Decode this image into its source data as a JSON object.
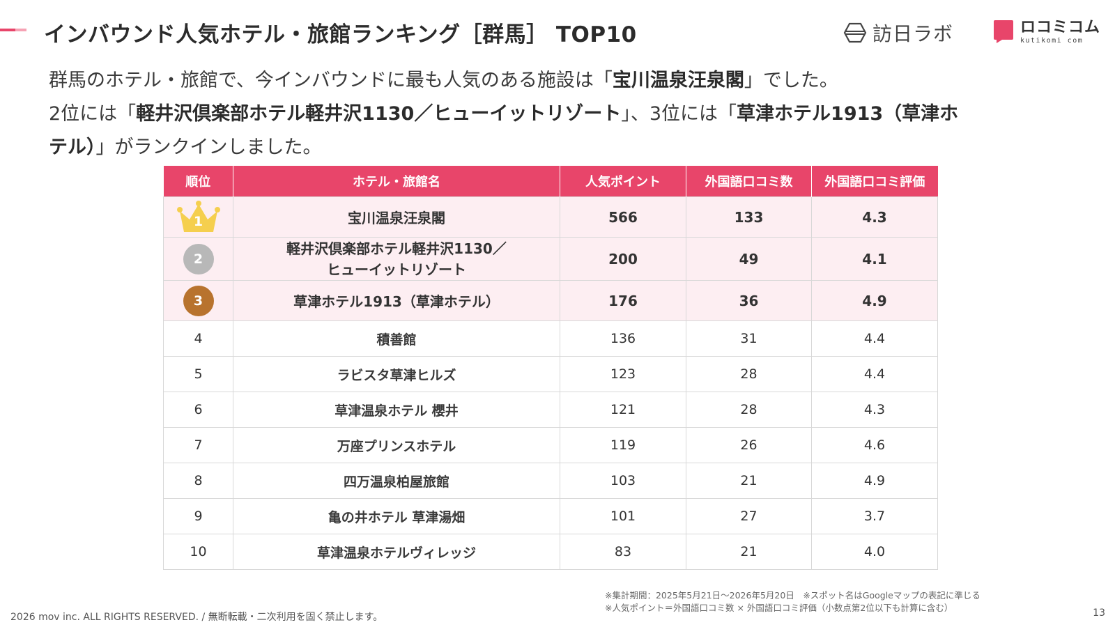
{
  "colors": {
    "accent": "#e8456a",
    "accent_light": "#f6a2b4",
    "header_bg": "#e8456a",
    "top_row_bg": "#fdeef2",
    "gold": "#f5cf4e",
    "silver": "#b8b8b8",
    "bronze": "#b8732e",
    "logo_pink": "#e8456a"
  },
  "header": {
    "title": "インバウンド人気ホテル・旅館ランキング［群馬］ TOP10",
    "logo_houjin_text": "訪日ラボ",
    "logo_houjin_icon": "hexagon-logo-icon",
    "logo_kuti_text": "ロコミコム",
    "logo_kuti_sub": "kutikomi com",
    "logo_kuti_icon": "speech-bubble-logo-icon"
  },
  "intro": {
    "l1_a": "群馬のホテル・旅館で、今インバウンドに最も人気のある施設は「",
    "l1_b": "宝川温泉汪泉閣",
    "l1_c": "」でした。",
    "l2_a": "2位には「",
    "l2_b": "軽井沢倶楽部ホテル軽井沢1130／ヒューイットリゾート",
    "l2_c": "」、3位には「",
    "l2_d": "草津ホテル1913（草津ホ",
    "l3_a": "テル）",
    "l3_b": "」がランクインしました。"
  },
  "table": {
    "headers": [
      "順位",
      "ホテル・旅館名",
      "人気ポイント",
      "外国語口コミ数",
      "外国語口コミ評価"
    ],
    "rows": [
      {
        "rank": "1",
        "name": "宝川温泉汪泉閣",
        "points": "566",
        "reviews": "133",
        "rating": "4.3"
      },
      {
        "rank": "2",
        "name_l1": "軽井沢倶楽部ホテル軽井沢1130／",
        "name_l2": "ヒューイットリゾート",
        "points": "200",
        "reviews": "49",
        "rating": "4.1"
      },
      {
        "rank": "3",
        "name": "草津ホテル1913（草津ホテル）",
        "points": "176",
        "reviews": "36",
        "rating": "4.9"
      },
      {
        "rank": "4",
        "name": "積善館",
        "points": "136",
        "reviews": "31",
        "rating": "4.4"
      },
      {
        "rank": "5",
        "name": "ラビスタ草津ヒルズ",
        "points": "123",
        "reviews": "28",
        "rating": "4.4"
      },
      {
        "rank": "6",
        "name": "草津温泉ホテル 櫻井",
        "points": "121",
        "reviews": "28",
        "rating": "4.3"
      },
      {
        "rank": "7",
        "name": "万座プリンスホテル",
        "points": "119",
        "reviews": "26",
        "rating": "4.6"
      },
      {
        "rank": "8",
        "name": "四万温泉柏屋旅館",
        "points": "103",
        "reviews": "21",
        "rating": "4.9"
      },
      {
        "rank": "9",
        "name": "亀の井ホテル 草津湯畑",
        "points": "101",
        "reviews": "27",
        "rating": "3.7"
      },
      {
        "rank": "10",
        "name": "草津温泉ホテルヴィレッジ",
        "points": "83",
        "reviews": "21",
        "rating": "4.0"
      }
    ]
  },
  "footer": {
    "note1": "※集計期間：2025年5月21日〜2026年5月20日　※スポット名はGoogleマップの表記に準じる",
    "note2": "※人気ポイント＝外国語口コミ数 × 外国語口コミ評価（小数点第2位以下も計算に含む）",
    "copyright": "2026 mov inc. ALL RIGHTS RESERVED. / 無断転載・二次利用を固く禁止します。",
    "page_number": "13"
  }
}
